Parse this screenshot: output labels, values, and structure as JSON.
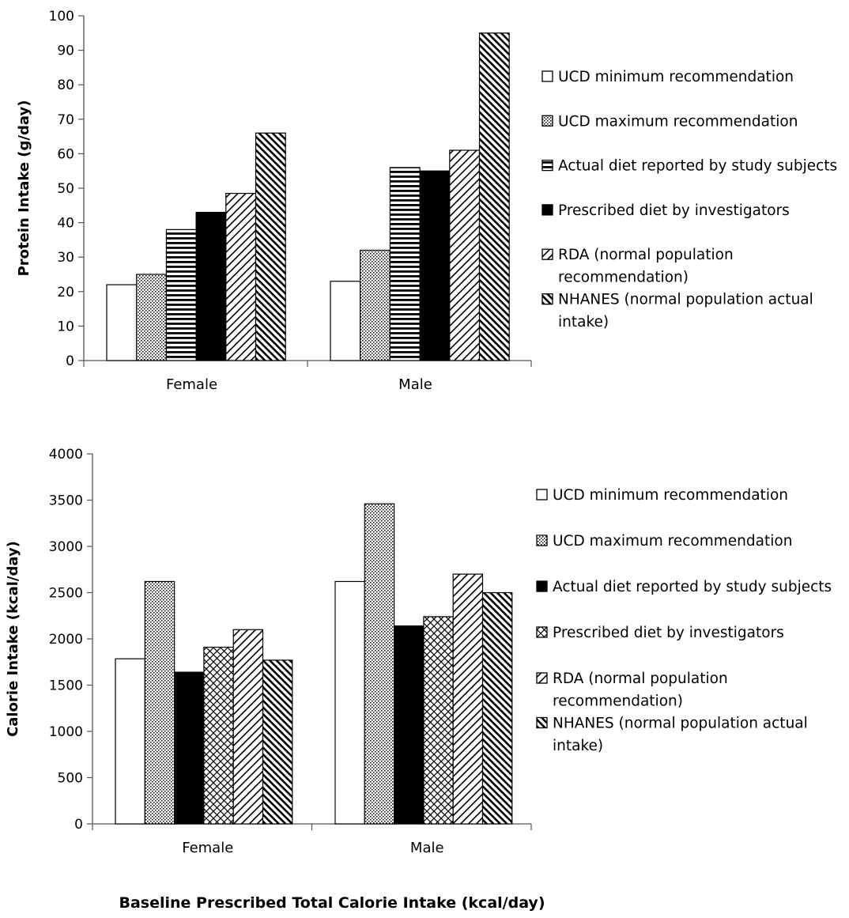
{
  "chart_data": [
    {
      "type": "bar",
      "title": "",
      "xlabel": "",
      "ylabel": "Protein Intake (g/day)",
      "ylim": [
        0,
        100
      ],
      "ytick_step": 10,
      "categories": [
        "Female",
        "Male"
      ],
      "grid": false,
      "legend_position": "right",
      "series": [
        {
          "name": "UCD minimum recommendation",
          "pattern": "blank",
          "values": [
            22,
            23
          ]
        },
        {
          "name": "UCD maximum recommendation",
          "pattern": "dots",
          "values": [
            25,
            32
          ]
        },
        {
          "name": "Actual diet reported by study subjects",
          "pattern": "hlines",
          "values": [
            38,
            56
          ]
        },
        {
          "name": "Prescribed diet by investigators",
          "pattern": "solid",
          "values": [
            43,
            55
          ]
        },
        {
          "name": "RDA (normal population recommendation)",
          "legend_lines": [
            "RDA (normal population",
            "recommendation)"
          ],
          "pattern": "diag-up",
          "values": [
            48.5,
            61
          ]
        },
        {
          "name": "NHANES (normal population actual intake)",
          "legend_lines": [
            "NHANES (normal population actual",
            "intake)"
          ],
          "pattern": "diag-down",
          "values": [
            66,
            95
          ]
        }
      ]
    },
    {
      "type": "bar",
      "title": "",
      "xlabel": "Baseline Prescribed Total Calorie Intake (kcal/day)",
      "ylabel": "Calorie Intake (kcal/day)",
      "ylim": [
        0,
        4000
      ],
      "ytick_step": 500,
      "categories": [
        "Female",
        "Male"
      ],
      "grid": false,
      "legend_position": "right",
      "series": [
        {
          "name": "UCD minimum recommendation",
          "pattern": "blank",
          "values": [
            1785,
            2620
          ]
        },
        {
          "name": "UCD maximum recommendation",
          "pattern": "dots",
          "values": [
            2620,
            3460
          ]
        },
        {
          "name": "Actual diet reported by study subjects",
          "pattern": "solid",
          "values": [
            1640,
            2140
          ]
        },
        {
          "name": "Prescribed diet by investigators",
          "pattern": "crosshatch",
          "values": [
            1910,
            2240
          ]
        },
        {
          "name": "RDA (normal population recommendation)",
          "legend_lines": [
            "RDA (normal population",
            "recommendation)"
          ],
          "pattern": "diag-up",
          "values": [
            2100,
            2700
          ]
        },
        {
          "name": "NHANES (normal population actual intake)",
          "legend_lines": [
            "NHANES (normal population actual",
            "intake)"
          ],
          "pattern": "diag-down",
          "values": [
            1770,
            2500
          ]
        }
      ]
    }
  ]
}
